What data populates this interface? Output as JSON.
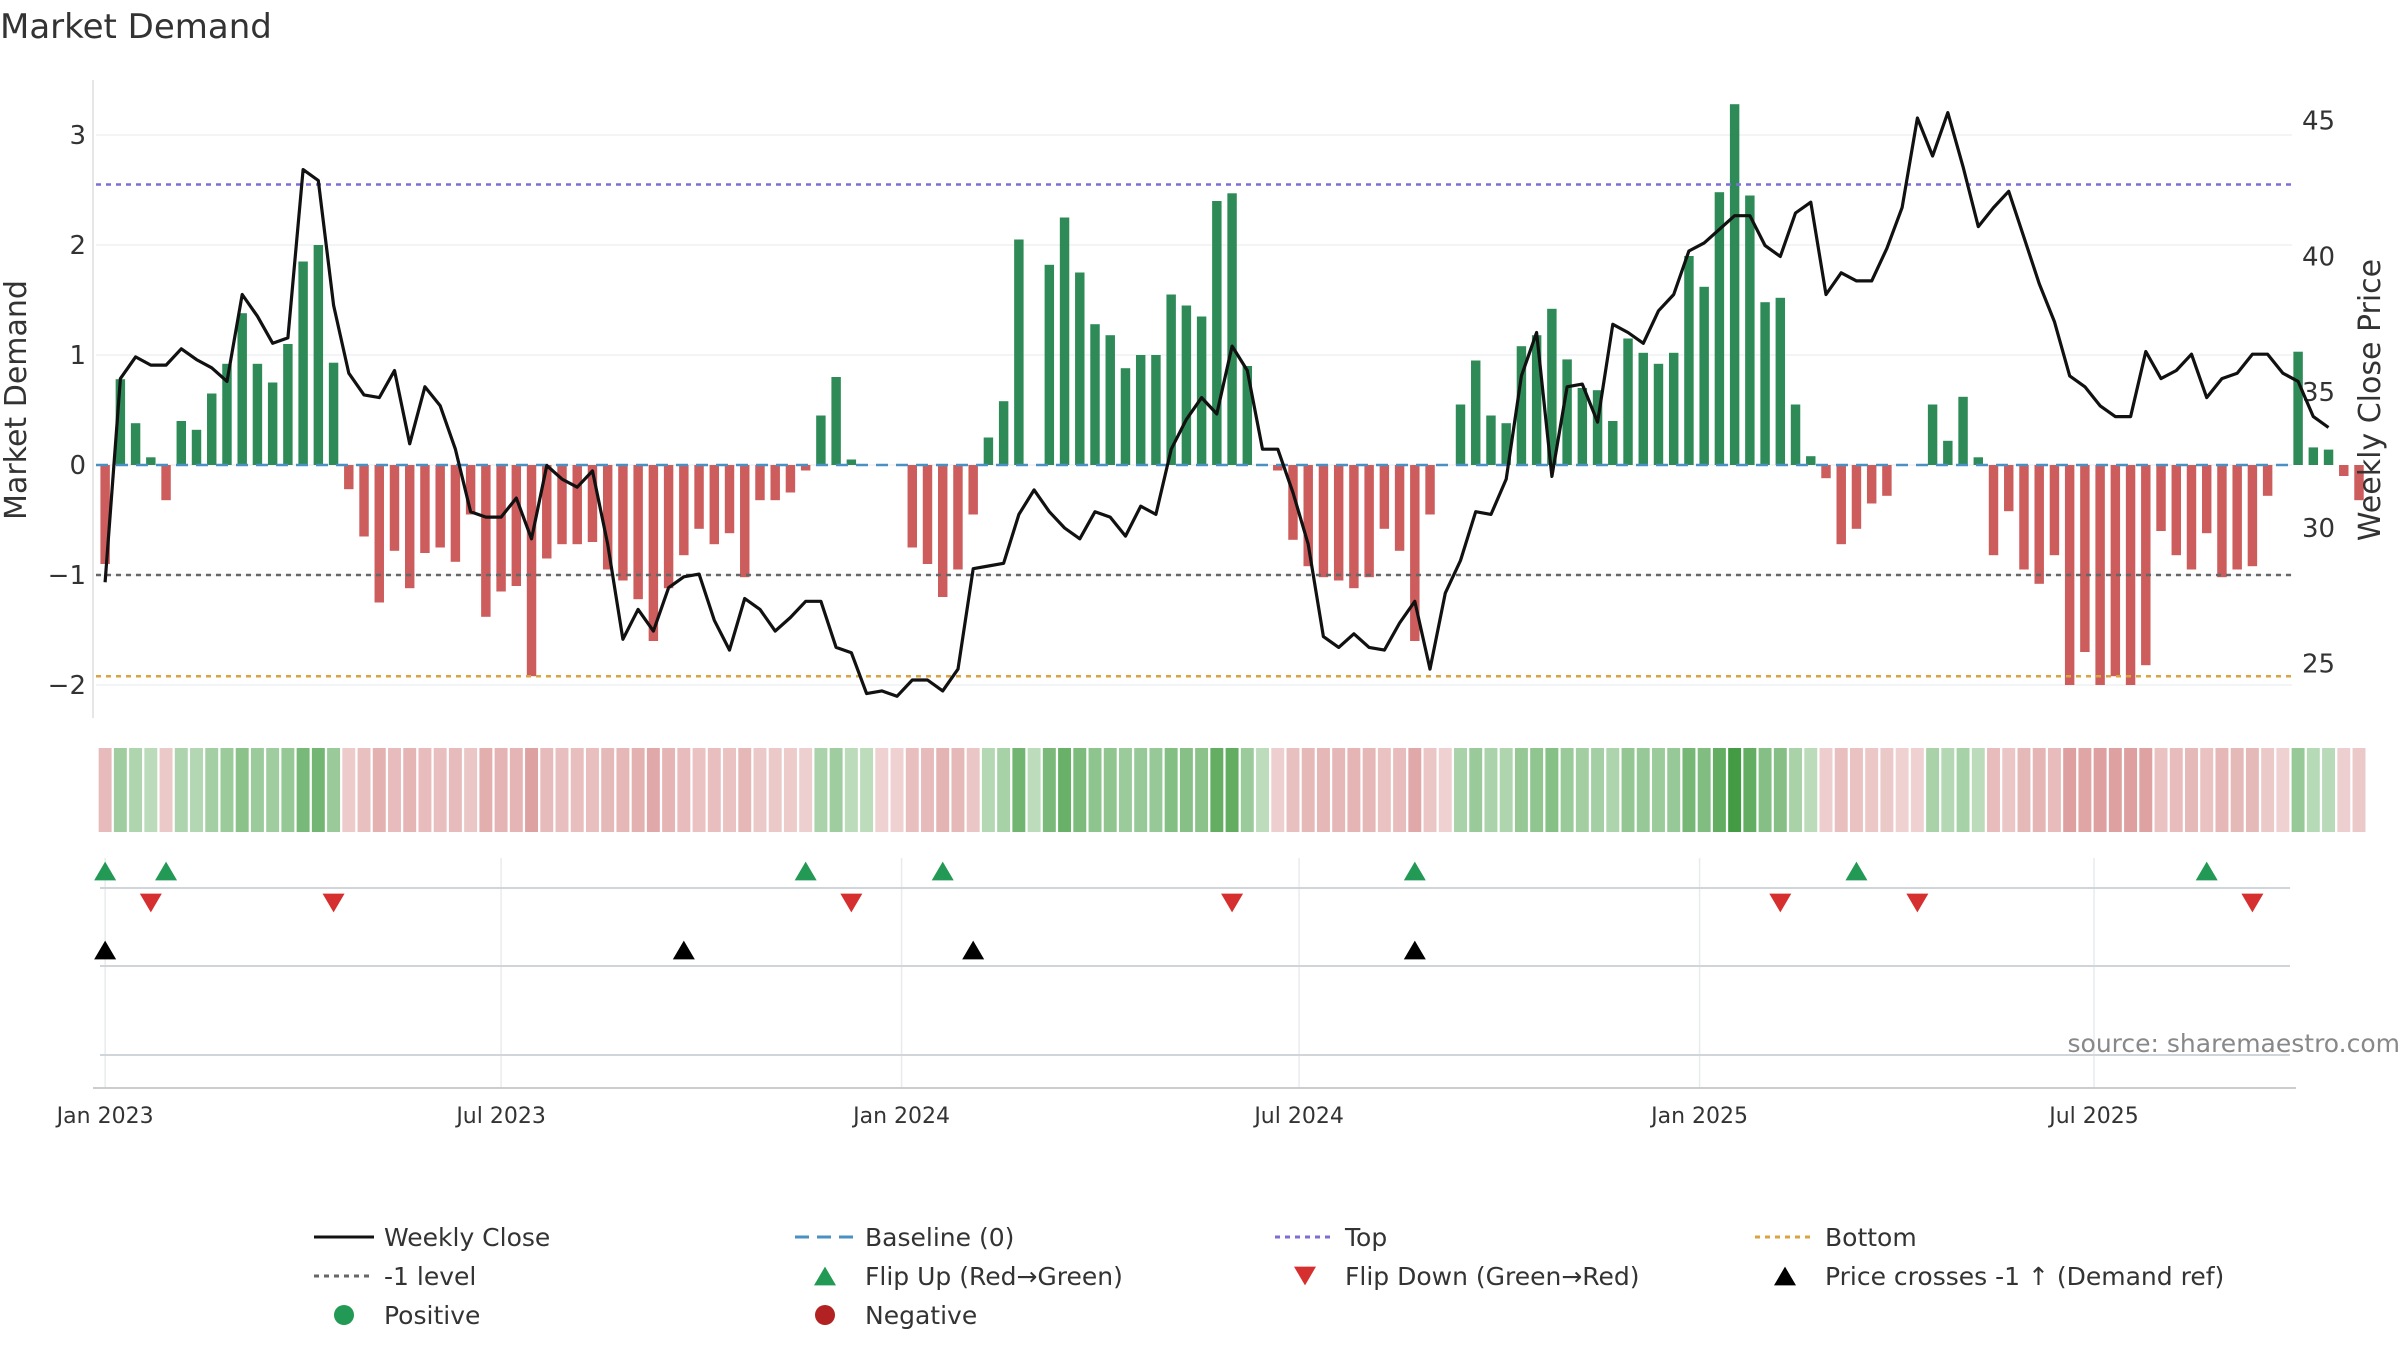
{
  "chart_data": {
    "type": "bar+line",
    "title": "Market Demand",
    "source": "source: sharemaestro.com",
    "ylabel_left": "Market Demand",
    "ylabel_right": "Weekly Close Price",
    "ylim_left": [
      -2.3,
      3.5
    ],
    "ylim_right": [
      23,
      46.5
    ],
    "yticks_left": [
      {
        "v": 3,
        "label": "3"
      },
      {
        "v": 2,
        "label": "2"
      },
      {
        "v": 1,
        "label": "1"
      },
      {
        "v": 0,
        "label": "0"
      },
      {
        "v": -1,
        "label": "−1"
      },
      {
        "v": -2,
        "label": "−2"
      }
    ],
    "yticks_right": [
      {
        "v": 45,
        "label": "45"
      },
      {
        "v": 40,
        "label": "40"
      },
      {
        "v": 35,
        "label": "35"
      },
      {
        "v": 30,
        "label": "30"
      },
      {
        "v": 25,
        "label": "25"
      }
    ],
    "xlim_weeks": [
      -0.6,
      143.6
    ],
    "xticks": [
      {
        "week": 0,
        "label": "Jan 2023"
      },
      {
        "week": 26,
        "label": "Jul 2023"
      },
      {
        "week": 52.3,
        "label": "Jan 2024"
      },
      {
        "week": 78.4,
        "label": "Jul 2024"
      },
      {
        "week": 104.7,
        "label": "Jan 2025"
      },
      {
        "week": 130.6,
        "label": "Jul 2025"
      }
    ],
    "reference_lines": {
      "top": 2.55,
      "minus_one": -1.0,
      "bottom": -1.92,
      "baseline": 0
    },
    "colors": {
      "positive": "#2e8b57",
      "negative": "#cd5c5c",
      "close": "#111111",
      "top": "#7b6fd6",
      "bottom": "#d9a441",
      "baseline": "#4a90c2",
      "level": "#666666",
      "flip_up": "#229954",
      "flip_down": "#d62f2f",
      "cross": "#000000"
    },
    "demand": [
      -0.9,
      0.78,
      0.38,
      0.07,
      -0.32,
      0.4,
      0.32,
      0.65,
      0.92,
      1.38,
      0.92,
      0.75,
      1.1,
      1.85,
      2.0,
      0.93,
      -0.22,
      -0.65,
      -1.25,
      -0.78,
      -1.12,
      -0.8,
      -0.75,
      -0.88,
      -0.45,
      -1.38,
      -1.15,
      -1.1,
      -1.92,
      -0.85,
      -0.72,
      -0.72,
      -0.7,
      -0.95,
      -1.05,
      -1.22,
      -1.6,
      -1.12,
      -0.82,
      -0.58,
      -0.72,
      -0.62,
      -1.02,
      -0.32,
      -0.32,
      -0.25,
      -0.05,
      0.45,
      0.8,
      0.05,
      0.0,
      0.0,
      0.0,
      -0.75,
      -0.9,
      -1.2,
      -0.95,
      -0.45,
      0.25,
      0.58,
      2.05,
      0.0,
      1.82,
      2.25,
      1.75,
      1.28,
      1.18,
      0.88,
      1.0,
      1.0,
      1.55,
      1.45,
      1.35,
      2.4,
      2.47,
      0.9,
      0.0,
      -0.05,
      -0.68,
      -0.92,
      -1.02,
      -1.05,
      -1.12,
      -1.02,
      -0.58,
      -0.78,
      -1.6,
      -0.45,
      0.0,
      0.55,
      0.95,
      0.45,
      0.38,
      1.08,
      1.18,
      1.42,
      0.96,
      0.7,
      0.68,
      0.4,
      1.15,
      1.02,
      0.92,
      1.02,
      1.9,
      1.62,
      2.48,
      3.28,
      2.45,
      1.48,
      1.52,
      0.55,
      0.08,
      -0.12,
      -0.72,
      -0.58,
      -0.35,
      -0.28,
      0.0,
      0.0,
      0.55,
      0.22,
      0.62,
      0.07,
      -0.82,
      -0.42,
      -0.95,
      -1.08,
      -0.82,
      -2.0,
      -1.7,
      -2.0,
      -1.92,
      -2.0,
      -1.82,
      -0.6,
      -0.82,
      -0.95,
      -0.62,
      -1.02,
      -0.95,
      -0.92,
      -0.28,
      0.0,
      1.03,
      0.16,
      0.14,
      -0.1,
      -0.32
    ],
    "close": [
      28.0,
      35.5,
      36.3,
      36.0,
      36.0,
      36.6,
      36.2,
      35.9,
      35.4,
      38.6,
      37.8,
      36.8,
      37.0,
      43.2,
      42.8,
      38.2,
      35.7,
      34.9,
      34.8,
      35.8,
      33.1,
      35.2,
      34.5,
      32.9,
      30.6,
      30.4,
      30.4,
      31.1,
      29.6,
      32.3,
      31.8,
      31.5,
      32.1,
      29.4,
      25.9,
      27.0,
      26.2,
      27.8,
      28.2,
      28.3,
      26.6,
      25.5,
      27.4,
      27.0,
      26.2,
      26.7,
      27.3,
      27.3,
      25.6,
      25.4,
      23.9,
      24.0,
      23.8,
      24.4,
      24.4,
      24.0,
      24.8,
      28.5,
      28.6,
      28.7,
      30.5,
      31.4,
      30.6,
      30.0,
      29.6,
      30.6,
      30.4,
      29.7,
      30.8,
      30.5,
      32.9,
      34.0,
      34.8,
      34.2,
      36.7,
      35.8,
      32.9,
      32.9,
      31.3,
      29.4,
      26.0,
      25.6,
      26.1,
      25.6,
      25.5,
      26.5,
      27.3,
      24.8,
      27.6,
      28.8,
      30.6,
      30.5,
      31.8,
      35.6,
      37.2,
      31.9,
      35.2,
      35.3,
      33.9,
      37.5,
      37.2,
      36.8,
      38.0,
      38.6,
      40.2,
      40.5,
      41.0,
      41.5,
      41.5,
      40.4,
      40.0,
      41.6,
      42.0,
      38.6,
      39.4,
      39.1,
      39.1,
      40.3,
      41.8,
      45.1,
      43.7,
      45.3,
      43.3,
      41.1,
      41.8,
      42.4,
      40.7,
      39.0,
      37.6,
      35.6,
      35.2,
      34.5,
      34.1,
      34.1,
      36.5,
      35.5,
      35.8,
      36.4,
      34.8,
      35.5,
      35.7,
      36.4,
      36.4,
      35.7,
      35.4,
      34.1,
      33.7
    ],
    "heat_strip": {
      "description": "per-week demand intensity: green = positive, red = negative, darker = stronger"
    },
    "flip_up_weeks": [
      0,
      4,
      46,
      55,
      86,
      115,
      138
    ],
    "flip_down_weeks": [
      3,
      15,
      49,
      74,
      110,
      119,
      141
    ],
    "price_cross_weeks": [
      0,
      38,
      57,
      86
    ],
    "legend": [
      {
        "key": "close",
        "label": "Weekly Close",
        "symbol": "line",
        "color": "#111111"
      },
      {
        "key": "baseline",
        "label": "Baseline (0)",
        "symbol": "dash",
        "color": "#4a90c2"
      },
      {
        "key": "top",
        "label": "Top",
        "symbol": "dot",
        "color": "#7b6fd6"
      },
      {
        "key": "bottom",
        "label": "Bottom",
        "symbol": "dot",
        "color": "#d9a441"
      },
      {
        "key": "level",
        "label": "-1 level",
        "symbol": "dot",
        "color": "#666666"
      },
      {
        "key": "flip_up",
        "label": "Flip Up (Red→Green)",
        "symbol": "tri-up",
        "color": "#229954"
      },
      {
        "key": "flip_down",
        "label": "Flip Down (Green→Red)",
        "symbol": "tri-down",
        "color": "#d62f2f"
      },
      {
        "key": "cross",
        "label": "Price crosses -1 ↑ (Demand ref)",
        "symbol": "tri-up",
        "color": "#000000"
      },
      {
        "key": "positive",
        "label": "Positive",
        "symbol": "circle",
        "color": "#229954"
      },
      {
        "key": "negative",
        "label": "Negative",
        "symbol": "circle",
        "color": "#b22222"
      }
    ]
  }
}
